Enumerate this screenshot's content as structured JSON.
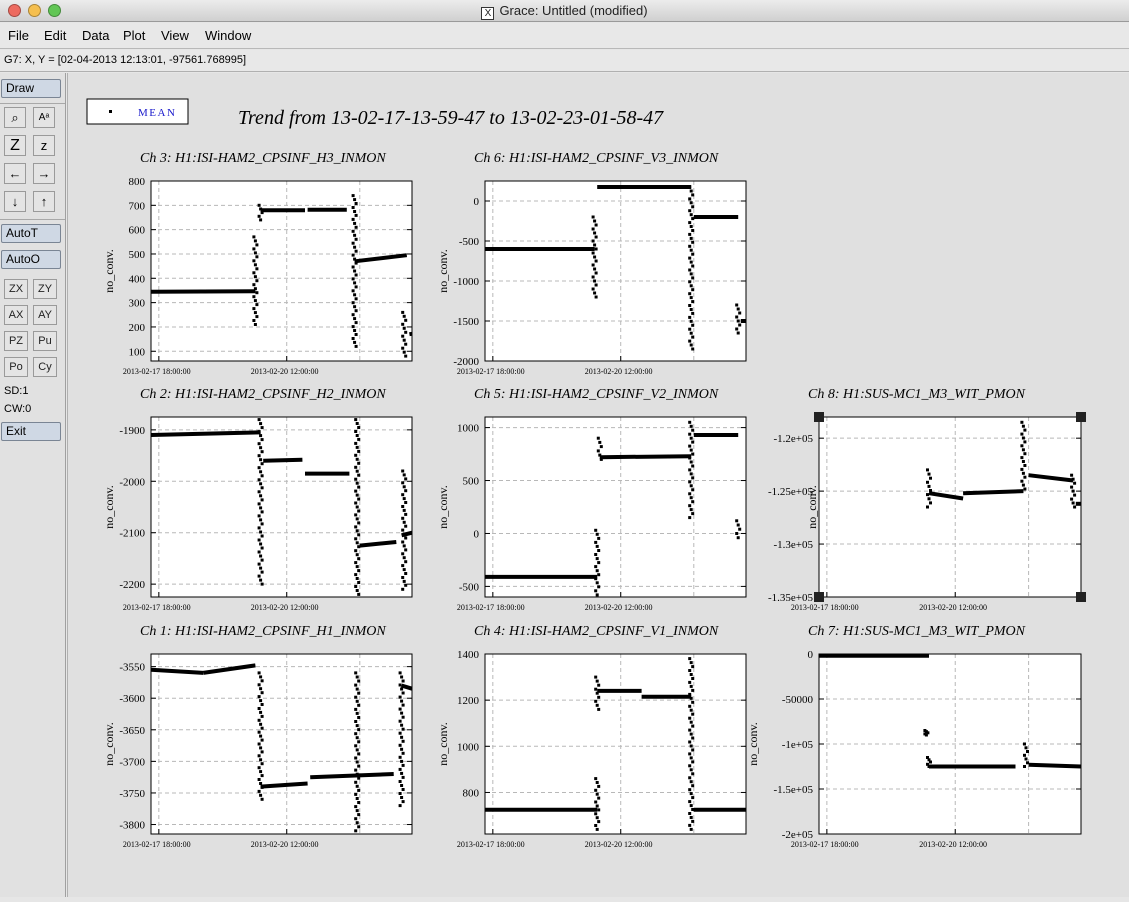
{
  "window": {
    "title": "Grace: Untitled (modified)",
    "x_glyph": "X"
  },
  "menu": [
    "File",
    "Edit",
    "Data",
    "Plot",
    "View",
    "Window"
  ],
  "locator": "G7: X, Y = [02-04-2013 12:13:01, -97561.768995]",
  "toolbar": {
    "draw": "Draw",
    "icon_buttons": [
      {
        "name": "zoom-icon",
        "glyph": "⌕"
      },
      {
        "name": "text-icon",
        "glyph": "Aᵃ"
      },
      {
        "name": "zoom-in-icon",
        "glyph": "Z"
      },
      {
        "name": "zoom-out-icon",
        "glyph": "z"
      },
      {
        "name": "arrow-left-icon",
        "glyph": "←"
      },
      {
        "name": "arrow-right-icon",
        "glyph": "→"
      },
      {
        "name": "arrow-down-icon",
        "glyph": "↓"
      },
      {
        "name": "arrow-up-icon",
        "glyph": "↑"
      }
    ],
    "autot": "AutoT",
    "autoo": "AutoO",
    "small_buttons": [
      "ZX",
      "ZY",
      "AX",
      "AY",
      "PZ",
      "Pu",
      "Po",
      "Cy"
    ],
    "sd": "SD:1",
    "cw": "CW:0",
    "exit": "Exit"
  },
  "legend": {
    "label": "MEAN"
  },
  "page_title": "Trend from 13-02-17-13-59-47 to 13-02-23-01-58-47",
  "chart_data": [
    {
      "type": "scatter",
      "title": "Ch 3: H1:ISI-HAM2_CPSINF_H3_INMON",
      "ylabel": "no_conv.",
      "xticks": [
        "2013-02-17 18:00:00",
        "2013-02-20 12:00:00"
      ],
      "ylim": [
        60,
        800
      ],
      "yticks": [
        100,
        200,
        300,
        400,
        500,
        600,
        700,
        800
      ],
      "segments": [
        [
          [
            0.0,
            345
          ],
          [
            0.4,
            347
          ]
        ],
        [
          [
            0.42,
            680
          ],
          [
            0.59,
            680
          ]
        ],
        [
          [
            0.6,
            682
          ],
          [
            0.75,
            682
          ]
        ],
        [
          [
            0.78,
            470
          ],
          [
            0.98,
            495
          ]
        ],
        [
          [
            0.99,
            170
          ],
          [
            1.0,
            172
          ]
        ]
      ],
      "spikes": [
        [
          0.4,
          210,
          570
        ],
        [
          0.42,
          640,
          700
        ],
        [
          0.78,
          120,
          740
        ],
        [
          0.97,
          80,
          260
        ]
      ]
    },
    {
      "type": "scatter",
      "title": "Ch 6: H1:ISI-HAM2_CPSINF_V3_INMON",
      "ylabel": "no_conv.",
      "xticks": [
        "2013-02-17 18:00:00",
        "2013-02-20 12:00:00"
      ],
      "ylim": [
        -2000,
        250
      ],
      "yticks": [
        -2000,
        -1500,
        -1000,
        -500,
        0
      ],
      "segments": [
        [
          [
            0.0,
            -600
          ],
          [
            0.42,
            -600
          ]
        ],
        [
          [
            0.43,
            175
          ],
          [
            0.79,
            175
          ]
        ],
        [
          [
            0.8,
            -200
          ],
          [
            0.97,
            -200
          ]
        ],
        [
          [
            0.98,
            -1500
          ],
          [
            1.0,
            -1500
          ]
        ]
      ],
      "spikes": [
        [
          0.42,
          -1200,
          -200
        ],
        [
          0.79,
          -1850,
          175
        ],
        [
          0.97,
          -1650,
          -1300
        ]
      ]
    },
    {
      "type": "scatter",
      "title": "Ch 8: H1:SUS-MC1_M3_WIT_PMON",
      "ylabel": "no_conv.",
      "xticks": [
        "2013-02-17 18:00:00",
        "2013-02-20 12:00:00"
      ],
      "ylim": [
        -135000,
        -118000
      ],
      "yticks": [
        -135000,
        -130000,
        -125000,
        -120000
      ],
      "ytick_labels": [
        "-1.35e+05",
        "-1.3e+05",
        "-1.25e+05",
        "-1.2e+05"
      ],
      "segments": [
        [
          [
            0.42,
            -125200
          ],
          [
            0.55,
            -125700
          ]
        ],
        [
          [
            0.55,
            -125200
          ],
          [
            0.78,
            -125000
          ]
        ],
        [
          [
            0.8,
            -123500
          ],
          [
            0.97,
            -124000
          ]
        ],
        [
          [
            0.98,
            -126200
          ],
          [
            1.0,
            -126200
          ]
        ]
      ],
      "spikes": [
        [
          0.42,
          -126500,
          -123000
        ],
        [
          0.78,
          -124800,
          -118500
        ],
        [
          0.97,
          -126500,
          -123500
        ]
      ]
    },
    {
      "type": "scatter",
      "title": "Ch 2: H1:ISI-HAM2_CPSINF_H2_INMON",
      "ylabel": "no_conv.",
      "xticks": [
        "2013-02-17 18:00:00",
        "2013-02-20 12:00:00"
      ],
      "ylim": [
        -2225,
        -1875
      ],
      "yticks": [
        -2200,
        -2100,
        -2000,
        -1900
      ],
      "segments": [
        [
          [
            0.0,
            -1910
          ],
          [
            0.42,
            -1905
          ]
        ],
        [
          [
            0.43,
            -1960
          ],
          [
            0.58,
            -1958
          ]
        ],
        [
          [
            0.59,
            -1985
          ],
          [
            0.76,
            -1985
          ]
        ],
        [
          [
            0.8,
            -2125
          ],
          [
            0.94,
            -2118
          ]
        ],
        [
          [
            0.96,
            -2105
          ],
          [
            1.0,
            -2100
          ]
        ]
      ],
      "spikes": [
        [
          0.42,
          -2200,
          -1880
        ],
        [
          0.79,
          -2220,
          -1880
        ],
        [
          0.97,
          -2210,
          -1980
        ]
      ]
    },
    {
      "type": "scatter",
      "title": "Ch 5: H1:ISI-HAM2_CPSINF_V2_INMON",
      "ylabel": "no_conv.",
      "xticks": [
        "2013-02-17 18:00:00",
        "2013-02-20 12:00:00"
      ],
      "ylim": [
        -600,
        1100
      ],
      "yticks": [
        -500,
        0,
        500,
        1000
      ],
      "segments": [
        [
          [
            0.0,
            -410
          ],
          [
            0.43,
            -410
          ]
        ],
        [
          [
            0.44,
            720
          ],
          [
            0.79,
            730
          ]
        ],
        [
          [
            0.8,
            930
          ],
          [
            0.97,
            930
          ]
        ]
      ],
      "spikes": [
        [
          0.43,
          -580,
          30
        ],
        [
          0.44,
          700,
          900
        ],
        [
          0.79,
          150,
          1050
        ],
        [
          0.97,
          -40,
          120
        ]
      ]
    },
    {
      "type": "scatter",
      "title": "Ch 1: H1:ISI-HAM2_CPSINF_H1_INMON",
      "ylabel": "no_conv.",
      "xticks": [
        "2013-02-17 18:00:00",
        "2013-02-20 12:00:00"
      ],
      "ylim": [
        -3815,
        -3530
      ],
      "yticks": [
        -3800,
        -3750,
        -3700,
        -3650,
        -3600,
        -3550
      ],
      "segments": [
        [
          [
            0.0,
            -3555
          ],
          [
            0.2,
            -3560
          ]
        ],
        [
          [
            0.2,
            -3560
          ],
          [
            0.4,
            -3548
          ]
        ],
        [
          [
            0.42,
            -3740
          ],
          [
            0.6,
            -3735
          ]
        ],
        [
          [
            0.61,
            -3725
          ],
          [
            0.93,
            -3720
          ]
        ],
        [
          [
            0.96,
            -3580
          ],
          [
            1.0,
            -3585
          ]
        ]
      ],
      "spikes": [
        [
          0.42,
          -3760,
          -3560
        ],
        [
          0.79,
          -3810,
          -3560
        ],
        [
          0.96,
          -3770,
          -3560
        ]
      ]
    },
    {
      "type": "scatter",
      "title": "Ch 4: H1:ISI-HAM2_CPSINF_V1_INMON",
      "ylabel": "no_conv.",
      "xticks": [
        "2013-02-17 18:00:00",
        "2013-02-20 12:00:00"
      ],
      "ylim": [
        620,
        1400
      ],
      "yticks": [
        800,
        1000,
        1200,
        1400
      ],
      "segments": [
        [
          [
            0.0,
            725
          ],
          [
            0.43,
            725
          ]
        ],
        [
          [
            0.43,
            1240
          ],
          [
            0.6,
            1240
          ]
        ],
        [
          [
            0.6,
            1215
          ],
          [
            0.79,
            1215
          ]
        ],
        [
          [
            0.8,
            725
          ],
          [
            1.0,
            725
          ]
        ]
      ],
      "spikes": [
        [
          0.43,
          640,
          860
        ],
        [
          0.43,
          1160,
          1300
        ],
        [
          0.79,
          640,
          1380
        ]
      ]
    },
    {
      "type": "scatter",
      "title": "Ch 7: H1:SUS-MC1_M3_WIT_PMON",
      "ylabel": "no_conv.",
      "xticks": [
        "2013-02-17 18:00:00",
        "2013-02-20 12:00:00"
      ],
      "ylim": [
        -200000,
        0
      ],
      "yticks": [
        -200000,
        -150000,
        -100000,
        -50000,
        0
      ],
      "ytick_labels": [
        "-2e+05",
        "-1.5e+05",
        "-1e+05",
        "-50000",
        "0"
      ],
      "segments": [
        [
          [
            0.0,
            -2000
          ],
          [
            0.42,
            -2000
          ]
        ],
        [
          [
            0.42,
            -125000
          ],
          [
            0.75,
            -125000
          ]
        ],
        [
          [
            0.8,
            -123000
          ],
          [
            1.0,
            -125000
          ]
        ]
      ],
      "spikes": [
        [
          0.41,
          -90000,
          -85000
        ],
        [
          0.42,
          -125000,
          -115000
        ],
        [
          0.79,
          -125000,
          -100000
        ]
      ]
    }
  ]
}
